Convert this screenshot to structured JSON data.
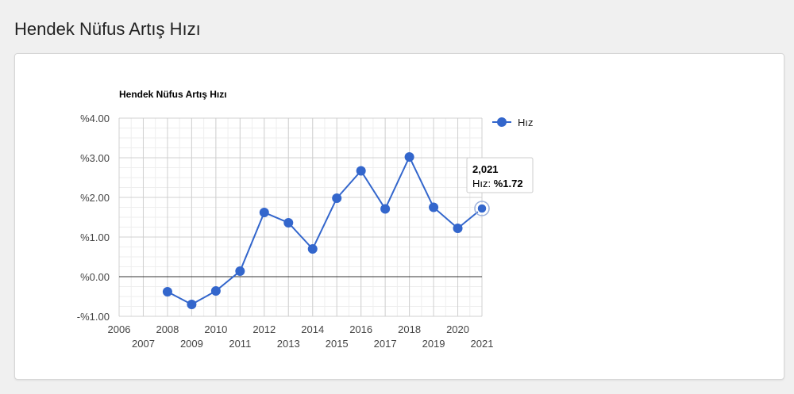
{
  "page": {
    "title": "Hendek Nüfus Artış Hızı"
  },
  "chart_data": {
    "type": "line",
    "title": "Hendek Nüfus Artış Hızı",
    "xlabel": "",
    "ylabel": "",
    "xlim": [
      2006,
      2021
    ],
    "ylim": [
      -1,
      4
    ],
    "x_ticks": [
      2006,
      2007,
      2008,
      2009,
      2010,
      2011,
      2012,
      2013,
      2014,
      2015,
      2016,
      2017,
      2018,
      2019,
      2020,
      2021
    ],
    "y_ticks": [
      -1,
      0,
      1,
      2,
      3,
      4
    ],
    "y_tick_labels": [
      "-%1.00",
      "%0.00",
      "%1.00",
      "%2.00",
      "%3.00",
      "%4.00"
    ],
    "grid": true,
    "legend": "right",
    "series": [
      {
        "name": "Hız",
        "color": "#3366cc",
        "x": [
          2008,
          2009,
          2010,
          2011,
          2012,
          2013,
          2014,
          2015,
          2016,
          2017,
          2018,
          2019,
          2020,
          2021
        ],
        "values": [
          -0.38,
          -0.7,
          -0.36,
          0.14,
          1.62,
          1.36,
          0.7,
          1.98,
          2.67,
          1.71,
          3.02,
          1.75,
          1.22,
          1.72
        ]
      }
    ],
    "tooltip": {
      "header": "2,021",
      "label": "Hız: ",
      "value": "%1.72"
    }
  }
}
